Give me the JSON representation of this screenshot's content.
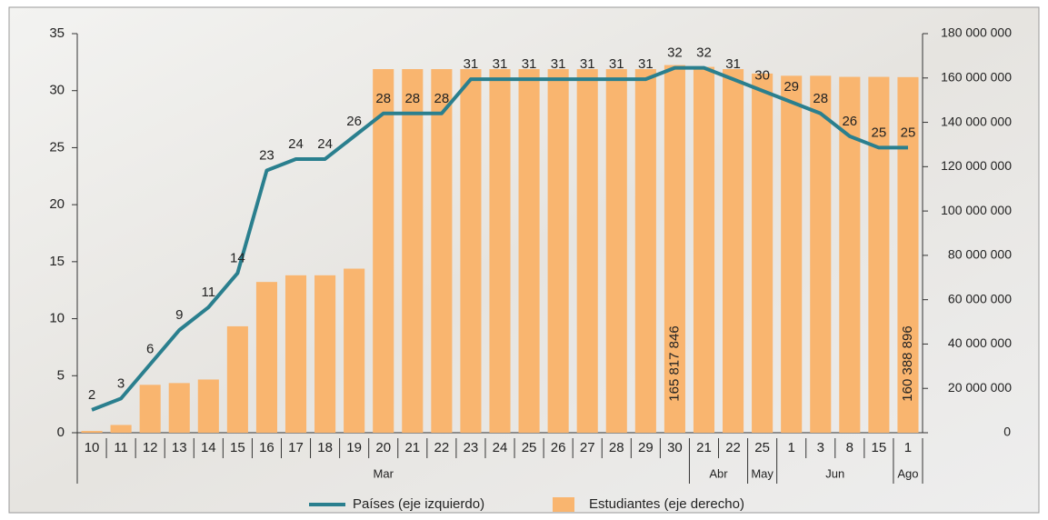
{
  "chart_data": {
    "type": "bar-line",
    "categories": [
      "10",
      "11",
      "12",
      "13",
      "14",
      "15",
      "16",
      "17",
      "18",
      "19",
      "20",
      "21",
      "22",
      "23",
      "24",
      "25",
      "26",
      "27",
      "28",
      "29",
      "30",
      "21",
      "22",
      "25",
      "1",
      "3",
      "8",
      "15",
      "1"
    ],
    "groups": [
      {
        "label": "Mar",
        "count": 21
      },
      {
        "label": "Abr",
        "count": 2
      },
      {
        "label": "May",
        "count": 1
      },
      {
        "label": "Jun",
        "count": 4
      },
      {
        "label": "Ago",
        "count": 1
      }
    ],
    "series": [
      {
        "name": "Países (eje izquierdo)",
        "type": "line",
        "color": "#2a7f8e",
        "axis": "y",
        "values": [
          2,
          3,
          6,
          9,
          11,
          14,
          23,
          24,
          24,
          26,
          28,
          28,
          28,
          31,
          31,
          31,
          31,
          31,
          31,
          31,
          32,
          32,
          31,
          30,
          29,
          28,
          26,
          25,
          25
        ]
      },
      {
        "name": "Estudiantes (eje derecho)",
        "type": "bar",
        "color": "#f9b56f",
        "axis": "y2",
        "values": [
          800000,
          3500000,
          21600000,
          22400000,
          24000000,
          48000000,
          68000000,
          71000000,
          71000000,
          74000000,
          164000000,
          164000000,
          164000000,
          164000000,
          164000000,
          164000000,
          164000000,
          164000000,
          164000000,
          164000000,
          165817846,
          165000000,
          164000000,
          162000000,
          161000000,
          161000000,
          160500000,
          160500000,
          160388896
        ],
        "value_labels": [
          null,
          null,
          null,
          null,
          null,
          null,
          null,
          null,
          null,
          null,
          null,
          null,
          null,
          null,
          null,
          null,
          null,
          null,
          null,
          null,
          "165 817 846",
          null,
          null,
          null,
          null,
          null,
          null,
          null,
          "160 388 896"
        ]
      }
    ],
    "ylim": [
      0,
      35
    ],
    "yticks": [
      0,
      5,
      10,
      15,
      20,
      25,
      30,
      35
    ],
    "y2lim": [
      0,
      180000000
    ],
    "y2ticks": [
      0,
      {
        "value": 20000000,
        "label": "20 000 000"
      },
      {
        "value": 40000000,
        "label": "40 000 000"
      },
      {
        "value": 60000000,
        "label": "60 000 000"
      },
      {
        "value": 80000000,
        "label": "80 000 000"
      },
      {
        "value": 100000000,
        "label": "100 000 000"
      },
      {
        "value": 120000000,
        "label": "120 000 000"
      },
      {
        "value": 140000000,
        "label": "140 000 000"
      },
      {
        "value": 160000000,
        "label": "160 000 000"
      },
      {
        "value": 180000000,
        "label": "180 000 000"
      }
    ]
  }
}
